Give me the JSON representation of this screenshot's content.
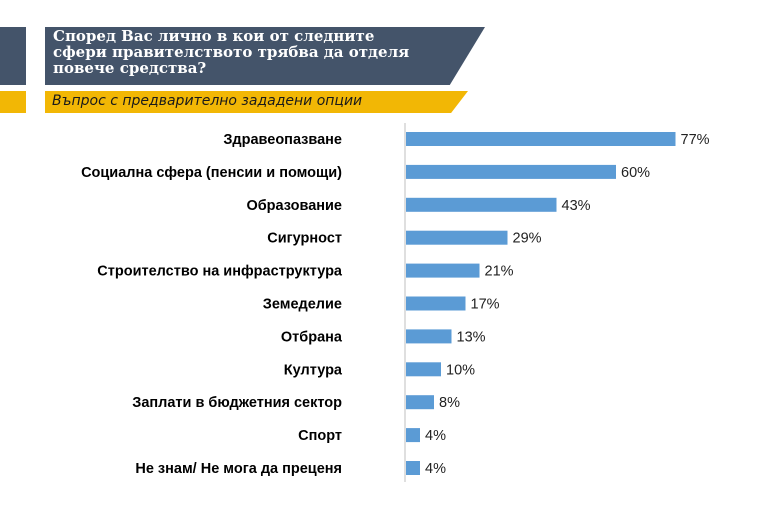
{
  "header": {
    "title": "Според Вас лично в кои от следните сфери правителството трябва да отделя повече средства?",
    "subtitle": "Въпрос с предварително зададени опции"
  },
  "colors": {
    "title_bg": "#44546a",
    "subtitle_bg": "#f2b705",
    "bar": "#5b9bd5"
  },
  "chart_data": {
    "type": "bar",
    "orientation": "horizontal",
    "categories": [
      "Здравеопазване",
      "Социална сфера (пенсии и помощи)",
      "Образование",
      "Сигурност",
      "Строителство на инфраструктура",
      "Земеделие",
      "Отбрана",
      "Култура",
      "Заплати в бюджетния сектор",
      "Спорт",
      "Не знам/ Не мога да преценя"
    ],
    "values": [
      77,
      60,
      43,
      29,
      21,
      17,
      13,
      10,
      8,
      4,
      4
    ],
    "value_labels": [
      "77%",
      "60%",
      "43%",
      "29%",
      "21%",
      "17%",
      "13%",
      "10%",
      "8%",
      "4%",
      "4%"
    ],
    "unit": "%",
    "grid": false
  }
}
